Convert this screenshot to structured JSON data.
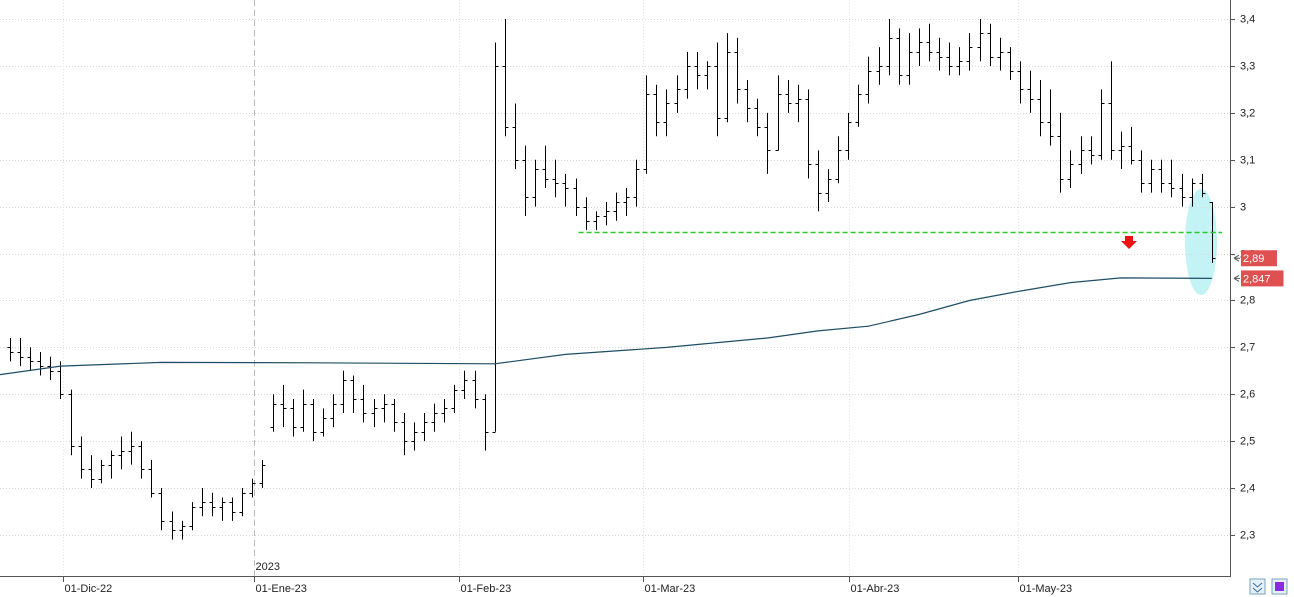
{
  "chart_data": {
    "type": "ohlc",
    "bar_color": "#000000",
    "xlim": [
      -0.99,
      120.8
    ],
    "ylim": [
      2.2125,
      3.4406
    ],
    "yticks": [
      {
        "value": 2.3,
        "label": "2,3"
      },
      {
        "value": 2.4,
        "label": "2,4"
      },
      {
        "value": 2.5,
        "label": "2,5"
      },
      {
        "value": 2.6,
        "label": "2,6"
      },
      {
        "value": 2.7,
        "label": "2,7"
      },
      {
        "value": 2.8,
        "label": "2,8"
      },
      {
        "value": 2.9,
        "label": "2,9"
      },
      3,
      {
        "value": 3.1,
        "label": "3,1"
      },
      {
        "value": 3.2,
        "label": "3,2"
      },
      {
        "value": 3.3,
        "label": "3,3"
      },
      {
        "value": 3.4,
        "label": "3,4"
      }
    ],
    "xticks": [
      {
        "value": 5.25,
        "label": "01-Dic-22"
      },
      {
        "value": 24.2,
        "label": "01-Ene-23"
      },
      {
        "value": 44.5,
        "label": "01-Feb-23"
      },
      {
        "value": 62.7,
        "label": "01-Mar-23"
      },
      {
        "value": 83.1,
        "label": "01-Abr-23"
      },
      {
        "value": 99.8,
        "label": "01-May-23"
      }
    ],
    "year_marker": {
      "value": 24.2,
      "label": "2023"
    },
    "grid": true,
    "bars": [
      {
        "o": 2.7,
        "h": 2.72,
        "l": 2.67,
        "c": 2.69
      },
      {
        "o": 2.69,
        "h": 2.72,
        "l": 2.66,
        "c": 2.68
      },
      {
        "o": 2.68,
        "h": 2.7,
        "l": 2.65,
        "c": 2.67
      },
      {
        "o": 2.67,
        "h": 2.69,
        "l": 2.64,
        "c": 2.66
      },
      {
        "o": 2.66,
        "h": 2.68,
        "l": 2.63,
        "c": 2.65
      },
      {
        "o": 2.65,
        "h": 2.67,
        "l": 2.59,
        "c": 2.6
      },
      {
        "o": 2.6,
        "h": 2.61,
        "l": 2.47,
        "c": 2.49
      },
      {
        "o": 2.49,
        "h": 2.51,
        "l": 2.42,
        "c": 2.44
      },
      {
        "o": 2.44,
        "h": 2.47,
        "l": 2.4,
        "c": 2.42
      },
      {
        "o": 2.42,
        "h": 2.46,
        "l": 2.41,
        "c": 2.45
      },
      {
        "o": 2.45,
        "h": 2.48,
        "l": 2.42,
        "c": 2.47
      },
      {
        "o": 2.47,
        "h": 2.51,
        "l": 2.44,
        "c": 2.48
      },
      {
        "o": 2.48,
        "h": 2.52,
        "l": 2.45,
        "c": 2.49
      },
      {
        "o": 2.49,
        "h": 2.5,
        "l": 2.42,
        "c": 2.44
      },
      {
        "o": 2.44,
        "h": 2.46,
        "l": 2.38,
        "c": 2.39
      },
      {
        "o": 2.39,
        "h": 2.4,
        "l": 2.31,
        "c": 2.33
      },
      {
        "o": 2.33,
        "h": 2.35,
        "l": 2.29,
        "c": 2.31
      },
      {
        "o": 2.31,
        "h": 2.33,
        "l": 2.29,
        "c": 2.32
      },
      {
        "o": 2.32,
        "h": 2.37,
        "l": 2.31,
        "c": 2.36
      },
      {
        "o": 2.36,
        "h": 2.4,
        "l": 2.34,
        "c": 2.37
      },
      {
        "o": 2.37,
        "h": 2.39,
        "l": 2.34,
        "c": 2.36
      },
      {
        "o": 2.36,
        "h": 2.38,
        "l": 2.33,
        "c": 2.37
      },
      {
        "o": 2.37,
        "h": 2.38,
        "l": 2.33,
        "c": 2.35
      },
      {
        "o": 2.35,
        "h": 2.4,
        "l": 2.34,
        "c": 2.39
      },
      {
        "o": 2.39,
        "h": 2.42,
        "l": 2.38,
        "c": 2.41
      },
      {
        "o": 2.41,
        "h": 2.46,
        "l": 2.4,
        "c": 2.45
      },
      {
        "o": 2.53,
        "h": 2.6,
        "l": 2.52,
        "c": 2.58
      },
      {
        "o": 2.58,
        "h": 2.62,
        "l": 2.53,
        "c": 2.57
      },
      {
        "o": 2.57,
        "h": 2.59,
        "l": 2.51,
        "c": 2.53
      },
      {
        "o": 2.53,
        "h": 2.61,
        "l": 2.52,
        "c": 2.58
      },
      {
        "o": 2.58,
        "h": 2.59,
        "l": 2.5,
        "c": 2.52
      },
      {
        "o": 2.52,
        "h": 2.57,
        "l": 2.51,
        "c": 2.55
      },
      {
        "o": 2.55,
        "h": 2.6,
        "l": 2.53,
        "c": 2.58
      },
      {
        "o": 2.58,
        "h": 2.65,
        "l": 2.56,
        "c": 2.63
      },
      {
        "o": 2.63,
        "h": 2.64,
        "l": 2.56,
        "c": 2.59
      },
      {
        "o": 2.59,
        "h": 2.62,
        "l": 2.54,
        "c": 2.56
      },
      {
        "o": 2.56,
        "h": 2.59,
        "l": 2.53,
        "c": 2.57
      },
      {
        "o": 2.57,
        "h": 2.6,
        "l": 2.54,
        "c": 2.58
      },
      {
        "o": 2.58,
        "h": 2.59,
        "l": 2.52,
        "c": 2.54
      },
      {
        "o": 2.54,
        "h": 2.56,
        "l": 2.47,
        "c": 2.5
      },
      {
        "o": 2.5,
        "h": 2.54,
        "l": 2.48,
        "c": 2.52
      },
      {
        "o": 2.52,
        "h": 2.56,
        "l": 2.5,
        "c": 2.54
      },
      {
        "o": 2.54,
        "h": 2.58,
        "l": 2.52,
        "c": 2.56
      },
      {
        "o": 2.56,
        "h": 2.59,
        "l": 2.54,
        "c": 2.57
      },
      {
        "o": 2.57,
        "h": 2.62,
        "l": 2.56,
        "c": 2.61
      },
      {
        "o": 2.61,
        "h": 2.65,
        "l": 2.59,
        "c": 2.63
      },
      {
        "o": 2.63,
        "h": 2.65,
        "l": 2.57,
        "c": 2.59
      },
      {
        "o": 2.59,
        "h": 2.6,
        "l": 2.48,
        "c": 2.52
      },
      {
        "o": 2.52,
        "h": 3.35,
        "l": 2.52,
        "c": 3.3
      },
      {
        "o": 3.3,
        "h": 3.4,
        "l": 3.15,
        "c": 3.17
      },
      {
        "o": 3.17,
        "h": 3.22,
        "l": 3.08,
        "c": 3.1
      },
      {
        "o": 3.1,
        "h": 3.13,
        "l": 2.98,
        "c": 3.02
      },
      {
        "o": 3.02,
        "h": 3.1,
        "l": 3.0,
        "c": 3.08
      },
      {
        "o": 3.08,
        "h": 3.13,
        "l": 3.04,
        "c": 3.06
      },
      {
        "o": 3.06,
        "h": 3.1,
        "l": 3.02,
        "c": 3.05
      },
      {
        "o": 3.05,
        "h": 3.07,
        "l": 3.0,
        "c": 3.04
      },
      {
        "o": 3.04,
        "h": 3.06,
        "l": 2.98,
        "c": 3.0
      },
      {
        "o": 3.0,
        "h": 3.02,
        "l": 2.95,
        "c": 2.97
      },
      {
        "o": 2.97,
        "h": 2.99,
        "l": 2.95,
        "c": 2.98
      },
      {
        "o": 2.98,
        "h": 3.01,
        "l": 2.96,
        "c": 2.99
      },
      {
        "o": 2.99,
        "h": 3.03,
        "l": 2.97,
        "c": 3.01
      },
      {
        "o": 3.01,
        "h": 3.04,
        "l": 2.98,
        "c": 3.02
      },
      {
        "o": 3.02,
        "h": 3.1,
        "l": 3.0,
        "c": 3.08
      },
      {
        "o": 3.08,
        "h": 3.28,
        "l": 3.07,
        "c": 3.24
      },
      {
        "o": 3.24,
        "h": 3.26,
        "l": 3.15,
        "c": 3.18
      },
      {
        "o": 3.18,
        "h": 3.25,
        "l": 3.15,
        "c": 3.22
      },
      {
        "o": 3.22,
        "h": 3.28,
        "l": 3.2,
        "c": 3.25
      },
      {
        "o": 3.25,
        "h": 3.33,
        "l": 3.23,
        "c": 3.3
      },
      {
        "o": 3.3,
        "h": 3.33,
        "l": 3.25,
        "c": 3.28
      },
      {
        "o": 3.28,
        "h": 3.31,
        "l": 3.25,
        "c": 3.3
      },
      {
        "o": 3.3,
        "h": 3.35,
        "l": 3.15,
        "c": 3.19
      },
      {
        "o": 3.19,
        "h": 3.37,
        "l": 3.18,
        "c": 3.33
      },
      {
        "o": 3.33,
        "h": 3.36,
        "l": 3.22,
        "c": 3.25
      },
      {
        "o": 3.25,
        "h": 3.27,
        "l": 3.18,
        "c": 3.21
      },
      {
        "o": 3.21,
        "h": 3.23,
        "l": 3.15,
        "c": 3.17
      },
      {
        "o": 3.17,
        "h": 3.2,
        "l": 3.07,
        "c": 3.12
      },
      {
        "o": 3.12,
        "h": 3.28,
        "l": 3.12,
        "c": 3.24
      },
      {
        "o": 3.24,
        "h": 3.27,
        "l": 3.2,
        "c": 3.22
      },
      {
        "o": 3.22,
        "h": 3.26,
        "l": 3.18,
        "c": 3.23
      },
      {
        "o": 3.23,
        "h": 3.25,
        "l": 3.06,
        "c": 3.09
      },
      {
        "o": 3.09,
        "h": 3.12,
        "l": 2.99,
        "c": 3.03
      },
      {
        "o": 3.03,
        "h": 3.08,
        "l": 3.01,
        "c": 3.06
      },
      {
        "o": 3.06,
        "h": 3.15,
        "l": 3.05,
        "c": 3.12
      },
      {
        "o": 3.12,
        "h": 3.2,
        "l": 3.1,
        "c": 3.18
      },
      {
        "o": 3.18,
        "h": 3.26,
        "l": 3.17,
        "c": 3.24
      },
      {
        "o": 3.24,
        "h": 3.32,
        "l": 3.22,
        "c": 3.29
      },
      {
        "o": 3.29,
        "h": 3.34,
        "l": 3.26,
        "c": 3.3
      },
      {
        "o": 3.3,
        "h": 3.4,
        "l": 3.28,
        "c": 3.36
      },
      {
        "o": 3.36,
        "h": 3.38,
        "l": 3.26,
        "c": 3.28
      },
      {
        "o": 3.28,
        "h": 3.37,
        "l": 3.26,
        "c": 3.33
      },
      {
        "o": 3.33,
        "h": 3.38,
        "l": 3.3,
        "c": 3.35
      },
      {
        "o": 3.35,
        "h": 3.39,
        "l": 3.31,
        "c": 3.33
      },
      {
        "o": 3.33,
        "h": 3.36,
        "l": 3.29,
        "c": 3.32
      },
      {
        "o": 3.32,
        "h": 3.35,
        "l": 3.28,
        "c": 3.3
      },
      {
        "o": 3.3,
        "h": 3.34,
        "l": 3.28,
        "c": 3.31
      },
      {
        "o": 3.31,
        "h": 3.37,
        "l": 3.29,
        "c": 3.34
      },
      {
        "o": 3.34,
        "h": 3.4,
        "l": 3.31,
        "c": 3.37
      },
      {
        "o": 3.37,
        "h": 3.39,
        "l": 3.3,
        "c": 3.32
      },
      {
        "o": 3.32,
        "h": 3.36,
        "l": 3.29,
        "c": 3.33
      },
      {
        "o": 3.33,
        "h": 3.34,
        "l": 3.27,
        "c": 3.29
      },
      {
        "o": 3.29,
        "h": 3.31,
        "l": 3.22,
        "c": 3.25
      },
      {
        "o": 3.25,
        "h": 3.29,
        "l": 3.2,
        "c": 3.23
      },
      {
        "o": 3.23,
        "h": 3.27,
        "l": 3.15,
        "c": 3.18
      },
      {
        "o": 3.18,
        "h": 3.25,
        "l": 3.13,
        "c": 3.15
      },
      {
        "o": 3.15,
        "h": 3.2,
        "l": 3.03,
        "c": 3.06
      },
      {
        "o": 3.06,
        "h": 3.12,
        "l": 3.04,
        "c": 3.09
      },
      {
        "o": 3.09,
        "h": 3.15,
        "l": 3.07,
        "c": 3.12
      },
      {
        "o": 3.12,
        "h": 3.15,
        "l": 3.09,
        "c": 3.11
      },
      {
        "o": 3.11,
        "h": 3.25,
        "l": 3.1,
        "c": 3.22
      },
      {
        "o": 3.22,
        "h": 3.31,
        "l": 3.1,
        "c": 3.12
      },
      {
        "o": 3.12,
        "h": 3.16,
        "l": 3.08,
        "c": 3.13
      },
      {
        "o": 3.13,
        "h": 3.17,
        "l": 3.09,
        "c": 3.1
      },
      {
        "o": 3.1,
        "h": 3.12,
        "l": 3.03,
        "c": 3.05
      },
      {
        "o": 3.05,
        "h": 3.1,
        "l": 3.03,
        "c": 3.08
      },
      {
        "o": 3.08,
        "h": 3.1,
        "l": 3.03,
        "c": 3.05
      },
      {
        "o": 3.05,
        "h": 3.1,
        "l": 3.02,
        "c": 3.04
      },
      {
        "o": 3.04,
        "h": 3.07,
        "l": 3.0,
        "c": 3.02
      },
      {
        "o": 3.02,
        "h": 3.06,
        "l": 3.0,
        "c": 3.05
      },
      {
        "o": 3.05,
        "h": 3.07,
        "l": 3.02,
        "c": 3.03
      },
      {
        "o": 3.01,
        "h": 3.01,
        "l": 2.88,
        "c": 2.89
      }
    ],
    "moving_average": {
      "color": "#1f4e66",
      "x": [
        -0.99,
        5,
        15,
        30,
        48,
        55,
        65,
        75,
        80,
        85,
        90,
        95,
        100,
        105,
        110,
        119
      ],
      "values": [
        2.642,
        2.66,
        2.668,
        2.667,
        2.665,
        2.685,
        2.7,
        2.72,
        2.735,
        2.745,
        2.77,
        2.8,
        2.82,
        2.838,
        2.848,
        2.847
      ]
    },
    "support": {
      "value": 2.945,
      "start": 56.3,
      "color": "#22cc22"
    },
    "markers": [
      {
        "value": 2.89,
        "label": "2,89"
      },
      {
        "value": 2.847,
        "label": "2,847"
      }
    ],
    "marker_color": "#e05050"
  }
}
